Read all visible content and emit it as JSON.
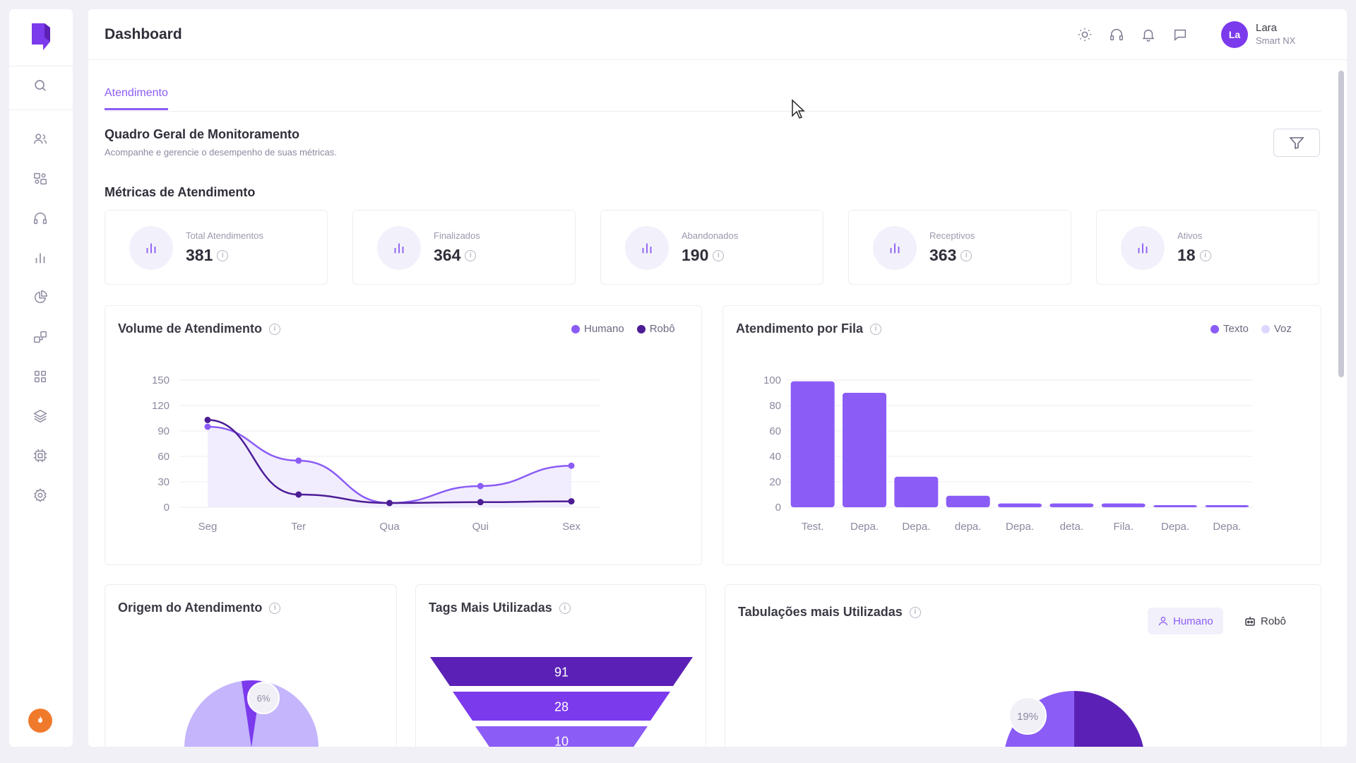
{
  "app": {
    "title": "Dashboard"
  },
  "user": {
    "initials": "La",
    "name": "Lara",
    "org": "Smart NX"
  },
  "tabs": [
    {
      "label": "Atendimento",
      "active": true
    }
  ],
  "overview": {
    "title": "Quadro Geral de Monitoramento",
    "subtitle": "Acompanhe e gerencie o desempenho de suas métricas."
  },
  "metrics": {
    "title": "Métricas de Atendimento",
    "cards": [
      {
        "label": "Total Atendimentos",
        "value": "381"
      },
      {
        "label": "Finalizados",
        "value": "364"
      },
      {
        "label": "Abandonados",
        "value": "190"
      },
      {
        "label": "Receptivos",
        "value": "363"
      },
      {
        "label": "Ativos",
        "value": "18"
      }
    ]
  },
  "colors": {
    "accent": "#8b5cf6",
    "dark_purple": "#4c1d95",
    "light_purple": "#ddd6fe",
    "bg": "#f1f0f7"
  },
  "panels": {
    "volume": {
      "title": "Volume de Atendimento",
      "legend": [
        "Humano",
        "Robô"
      ]
    },
    "fila": {
      "title": "Atendimento por Fila",
      "legend": [
        "Texto",
        "Voz"
      ]
    },
    "origem": {
      "title": "Origem do Atendimento",
      "pie_label": "6%"
    },
    "tags": {
      "title": "Tags Mais Utilizadas"
    },
    "tabulacoes": {
      "title": "Tabulações mais Utilizadas",
      "btn_humano": "Humano",
      "btn_robo": "Robô",
      "pie_label": "19%"
    }
  },
  "chart_data": [
    {
      "type": "line",
      "categories": [
        "Seg",
        "Ter",
        "Qua",
        "Qui",
        "Sex"
      ],
      "ylim": [
        0,
        150
      ],
      "yticks": [
        0,
        30,
        60,
        90,
        120,
        150
      ],
      "series": [
        {
          "name": "Humano",
          "values": [
            95,
            55,
            5,
            25,
            49
          ],
          "color": "#8b5cf6"
        },
        {
          "name": "Robô",
          "values": [
            103,
            15,
            5,
            6,
            7
          ],
          "color": "#4c1d95"
        }
      ]
    },
    {
      "type": "bar",
      "categories": [
        "Test.",
        "Depa.",
        "Depa.",
        "depa.",
        "Depa.",
        "deta.",
        "Fila.",
        "Depa.",
        "Depa."
      ],
      "ylim": [
        0,
        100
      ],
      "yticks": [
        0,
        20,
        40,
        60,
        80,
        100
      ],
      "series": [
        {
          "name": "Texto",
          "values": [
            99,
            90,
            24,
            9,
            3,
            3,
            3,
            1,
            1
          ],
          "color": "#8b5cf6"
        }
      ]
    },
    {
      "type": "bar",
      "orientation": "funnel",
      "values": [
        91,
        28,
        10
      ]
    }
  ]
}
